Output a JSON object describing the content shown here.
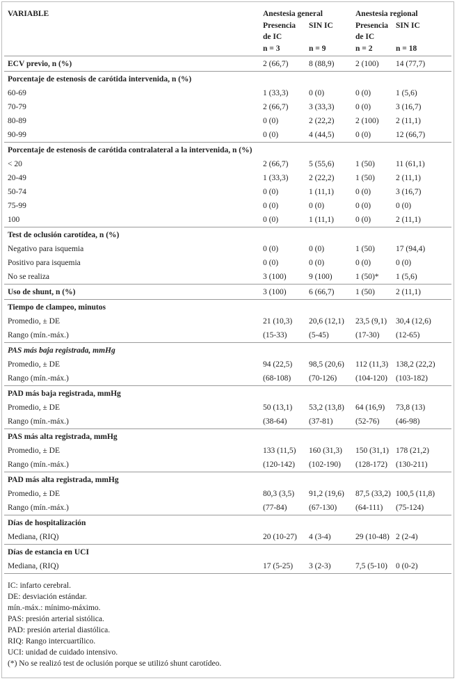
{
  "table": {
    "header": {
      "variable": "VARIABLE",
      "groups": [
        "Anestesia general",
        "Anestesia regional"
      ],
      "columns": [
        {
          "lines": [
            "Presencia",
            "de IC"
          ],
          "n": "n = 3"
        },
        {
          "lines": [
            "SIN IC"
          ],
          "n": "n = 9"
        },
        {
          "lines": [
            "Presencia",
            "de IC"
          ],
          "n": "n = 2"
        },
        {
          "lines": [
            "SIN IC"
          ],
          "n": "n = 18"
        }
      ]
    },
    "sections": [
      {
        "title": "ECV previo, n (%)",
        "values": [
          "2 (66,7)",
          "8 (88,9)",
          "2 (100)",
          "14 (77,7)"
        ]
      },
      {
        "title": "Porcentaje de estenosis de carótida intervenida, n (%)",
        "rows": [
          {
            "label": "60-69",
            "values": [
              "1 (33,3)",
              "0 (0)",
              "0 (0)",
              "1 (5,6)"
            ]
          },
          {
            "label": "70-79",
            "values": [
              "2 (66,7)",
              "3 (33,3)",
              "0 (0)",
              "3 (16,7)"
            ]
          },
          {
            "label": "80-89",
            "values": [
              "0 (0)",
              "2 (22,2)",
              "2 (100)",
              "2 (11,1)"
            ]
          },
          {
            "label": "90-99",
            "values": [
              "0 (0)",
              "4 (44,5)",
              "0 (0)",
              "12 (66,7)"
            ]
          }
        ]
      },
      {
        "title": "Porcentaje de estenosis de carótida contralateral a la intervenida, n (%)",
        "rows": [
          {
            "label": "< 20",
            "values": [
              "2 (66,7)",
              "5 (55,6)",
              "1 (50)",
              "11 (61,1)"
            ]
          },
          {
            "label": "20-49",
            "values": [
              "1 (33,3)",
              "2 (22,2)",
              "1 (50)",
              "2 (11,1)"
            ]
          },
          {
            "label": "50-74",
            "values": [
              "0 (0)",
              "1 (11,1)",
              "0 (0)",
              "3 (16,7)"
            ]
          },
          {
            "label": "75-99",
            "values": [
              "0 (0)",
              "0 (0)",
              "0 (0)",
              "0 (0)"
            ]
          },
          {
            "label": "100",
            "values": [
              "0 (0)",
              "1 (11,1)",
              "0 (0)",
              "2 (11,1)"
            ]
          }
        ]
      },
      {
        "title": "Test de oclusión carotídea, n (%)",
        "rows": [
          {
            "label": "Negativo para isquemia",
            "values": [
              "0 (0)",
              "0 (0)",
              "1 (50)",
              "17 (94,4)"
            ]
          },
          {
            "label": "Positivo para isquemia",
            "values": [
              "0 (0)",
              "0 (0)",
              "0 (0)",
              "0 (0)"
            ]
          },
          {
            "label": "No se realiza",
            "values": [
              "3 (100)",
              "9 (100)",
              "1 (50)*",
              "1 (5,6)"
            ]
          }
        ]
      },
      {
        "title": "Uso de shunt, n (%)",
        "values": [
          "3 (100)",
          "6 (66,7)",
          "1 (50)",
          "2 (11,1)"
        ]
      },
      {
        "title": "Tiempo de clampeo, minutos",
        "rows": [
          {
            "label": "Promedio, ± DE",
            "values": [
              "21 (10,3)",
              "20,6 (12,1)",
              "23,5 (9,1)",
              "30,4 (12,6)"
            ]
          },
          {
            "label": "Rango (mín.-máx.)",
            "values": [
              "(15-33)",
              "(5-45)",
              "(17-30)",
              "(12-65)"
            ]
          }
        ]
      },
      {
        "title": "PAS más baja registrada, mmHg",
        "italic": true,
        "rows": [
          {
            "label": "Promedio, ± DE",
            "values": [
              "94 (22,5)",
              "98,5 (20,6)",
              "112 (11,3)",
              "138,2 (22,2)"
            ]
          },
          {
            "label": "Rango (mín.-máx.)",
            "values": [
              "(68-108)",
              "(70-126)",
              "(104-120)",
              "(103-182)"
            ]
          }
        ]
      },
      {
        "title": "PAD más baja registrada, mmHg",
        "rows": [
          {
            "label": "Promedio, ± DE",
            "values": [
              "50 (13,1)",
              "53,2 (13,8)",
              "64 (16,9)",
              "73,8 (13)"
            ]
          },
          {
            "label": "Rango (mín.-máx.)",
            "values": [
              "(38-64)",
              "(37-81)",
              "(52-76)",
              "(46-98)"
            ]
          }
        ]
      },
      {
        "title": "PAS más alta registrada, mmHg",
        "rows": [
          {
            "label": "Promedio, ± DE",
            "values": [
              "133 (11,5)",
              "160 (31,3)",
              "150 (31,1)",
              "178 (21,2)"
            ]
          },
          {
            "label": "Rango (mín.-máx.)",
            "values": [
              "(120-142)",
              "(102-190)",
              "(128-172)",
              "(130-211)"
            ]
          }
        ]
      },
      {
        "title": "PAD más alta registrada, mmHg",
        "rows": [
          {
            "label": "Promedio, ± DE",
            "values": [
              "80,3 (3,5)",
              "91,2 (19,6)",
              "87,5 (33,2)",
              "100,5 (11,8)"
            ]
          },
          {
            "label": "Rango (mín.-máx.)",
            "values": [
              "(77-84)",
              "(67-130)",
              "(64-111)",
              "(75-124)"
            ]
          }
        ]
      },
      {
        "title": "Días de hospitalización",
        "rows": [
          {
            "label": "Mediana, (RIQ)",
            "values": [
              "20 (10-27)",
              "4 (3-4)",
              "29 (10-48)",
              "2 (2-4)"
            ]
          }
        ]
      },
      {
        "title": "Días de estancia en UCI",
        "rows": [
          {
            "label": "Mediana, (RIQ)",
            "values": [
              "17 (5-25)",
              "3 (2-3)",
              "7,5 (5-10)",
              "0 (0-2)"
            ]
          }
        ]
      }
    ],
    "footnotes": [
      "IC: infarto cerebral.",
      "DE: desviación estándar.",
      "mín.-máx.: mínimo-máximo.",
      "PAS: presión arterial sistólica.",
      "PAD: presión arterial diastólica.",
      "RIQ: Rango intercuartílico.",
      "UCI: unidad de cuidado intensivo.",
      "(*) No se realizó test de oclusión porque se utilizó shunt carotídeo."
    ]
  }
}
